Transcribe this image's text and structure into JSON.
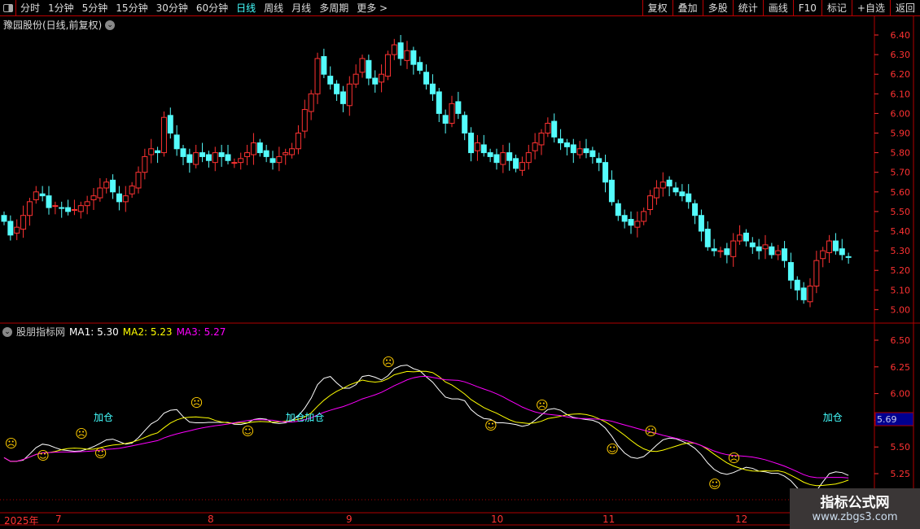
{
  "toolbar": {
    "periods": [
      "分时",
      "1分钟",
      "5分钟",
      "15分钟",
      "30分钟",
      "60分钟",
      "日线",
      "周线",
      "月线",
      "多周期",
      "更多 >"
    ],
    "active": "日线",
    "buttons": [
      "复权",
      "叠加",
      "多股",
      "统计",
      "画线",
      "F10",
      "标记",
      "+自选",
      "返回"
    ]
  },
  "stock_title": "豫园股份(日线,前复权)",
  "indicator": {
    "name": "股朋指标网",
    "ma1_label": "MA1: 5.30",
    "ma2_label": "MA2: 5.23",
    "ma3_label": "MA3: 5.27",
    "signal_text": "加仓",
    "current_value": "5.69"
  },
  "colors": {
    "up": "#ff3232",
    "down": "#54fcfc",
    "ma1": "#ffffff",
    "ma2": "#ffff00",
    "ma3": "#ff00ff",
    "axis": "#ff3232",
    "border": "#b00000"
  },
  "date_axis": [
    "2025年",
    "7",
    "8",
    "9",
    "10",
    "11",
    "12"
  ],
  "watermark": {
    "line1": "指标公式网",
    "line2": "www.zbgs3.com"
  },
  "chart_data": {
    "type": "candlestick",
    "price_axis": {
      "ticks": [
        5.0,
        5.1,
        5.2,
        5.3,
        5.4,
        5.5,
        5.6,
        5.7,
        5.8,
        5.9,
        6.0,
        6.1,
        6.2,
        6.3,
        6.4
      ],
      "range": [
        4.97,
        6.43
      ]
    },
    "indicator_axis": {
      "ticks": [
        5.25,
        5.5,
        5.75,
        6.0,
        6.25,
        6.5
      ],
      "range": [
        5.1,
        6.6
      ]
    },
    "closes": [
      5.45,
      5.38,
      5.42,
      5.48,
      5.55,
      5.6,
      5.58,
      5.52,
      5.53,
      5.52,
      5.5,
      5.51,
      5.53,
      5.55,
      5.58,
      5.62,
      5.65,
      5.6,
      5.55,
      5.58,
      5.63,
      5.7,
      5.78,
      5.82,
      5.8,
      5.98,
      5.9,
      5.82,
      5.78,
      5.75,
      5.8,
      5.78,
      5.76,
      5.8,
      5.78,
      5.76,
      5.75,
      5.77,
      5.8,
      5.85,
      5.8,
      5.78,
      5.75,
      5.78,
      5.8,
      5.82,
      5.9,
      6.02,
      6.1,
      6.28,
      6.2,
      6.15,
      6.1,
      6.05,
      6.15,
      6.2,
      6.28,
      6.18,
      6.15,
      6.2,
      6.3,
      6.35,
      6.28,
      6.32,
      6.25,
      6.22,
      6.15,
      6.1,
      6.0,
      5.95,
      6.05,
      6.0,
      5.9,
      5.8,
      5.85,
      5.8,
      5.78,
      5.75,
      5.8,
      5.76,
      5.72,
      5.75,
      5.8,
      5.85,
      5.9,
      5.95,
      5.88,
      5.85,
      5.83,
      5.8,
      5.82,
      5.8,
      5.78,
      5.75,
      5.65,
      5.55,
      5.48,
      5.45,
      5.43,
      5.45,
      5.5,
      5.58,
      5.62,
      5.65,
      5.63,
      5.6,
      5.58,
      5.55,
      5.48,
      5.4,
      5.32,
      5.3,
      5.3,
      5.28,
      5.35,
      5.38,
      5.35,
      5.32,
      5.3,
      5.33,
      5.28,
      5.3,
      5.25,
      5.15,
      5.1,
      5.05,
      5.12,
      5.25,
      5.3,
      5.35,
      5.3,
      5.28,
      5.27
    ]
  }
}
